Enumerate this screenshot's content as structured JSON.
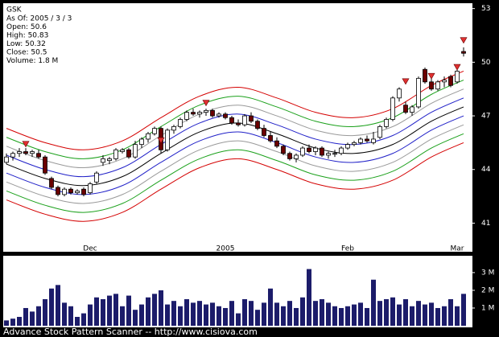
{
  "chart_data": {
    "type": "candlestick",
    "title": "GSK",
    "info": [
      "As Of: 2005 / 3 / 3",
      "Open: 50.6",
      "High: 50.83",
      "Low: 50.32",
      "Close: 50.5",
      "Volume: 1.8 M"
    ],
    "categories": [
      null,
      null,
      null,
      null,
      null,
      null,
      null,
      null,
      null,
      null,
      null,
      null,
      null,
      "Dec",
      null,
      null,
      null,
      null,
      null,
      null,
      null,
      null,
      null,
      null,
      null,
      null,
      null,
      null,
      null,
      null,
      null,
      null,
      null,
      null,
      "2005",
      null,
      null,
      null,
      null,
      null,
      null,
      null,
      null,
      null,
      null,
      null,
      null,
      null,
      null,
      null,
      null,
      null,
      null,
      "Feb",
      null,
      null,
      null,
      null,
      null,
      null,
      null,
      null,
      null,
      null,
      null,
      null,
      null,
      null,
      null,
      null,
      "Mar",
      null
    ],
    "open": [
      44.4,
      44.7,
      44.9,
      45.0,
      44.9,
      44.9,
      44.7,
      43.5,
      43.0,
      42.6,
      42.9,
      42.7,
      42.9,
      42.7,
      43.3,
      44.4,
      44.5,
      44.6,
      45.0,
      45.1,
      44.7,
      45.4,
      45.7,
      46.0,
      46.3,
      45.1,
      46.2,
      46.4,
      46.8,
      47.2,
      47.1,
      47.2,
      47.3,
      47.0,
      47.1,
      46.9,
      46.6,
      46.5,
      47.0,
      46.7,
      46.3,
      45.9,
      45.6,
      45.3,
      44.9,
      44.6,
      44.8,
      45.2,
      45.0,
      45.2,
      44.8,
      44.9,
      44.9,
      45.2,
      45.4,
      45.5,
      45.7,
      45.5,
      45.8,
      46.4,
      46.8,
      48.0,
      47.6,
      47.2,
      47.5,
      49.6,
      48.9,
      48.5,
      48.9,
      49.2,
      48.9,
      50.6
    ],
    "high": [
      44.9,
      45.0,
      45.2,
      45.2,
      45.1,
      45.1,
      44.8,
      43.6,
      43.1,
      43.0,
      43.0,
      42.9,
      43.0,
      43.3,
      43.9,
      44.8,
      44.7,
      45.2,
      45.2,
      45.2,
      45.6,
      45.8,
      46.1,
      46.4,
      46.4,
      46.3,
      46.5,
      46.9,
      47.3,
      47.4,
      47.3,
      47.4,
      47.4,
      47.2,
      47.2,
      47.0,
      46.8,
      47.1,
      47.2,
      46.8,
      46.5,
      46.1,
      45.8,
      45.4,
      45.0,
      44.9,
      45.3,
      45.4,
      45.3,
      45.3,
      45.0,
      45.1,
      45.3,
      45.5,
      45.6,
      45.8,
      45.9,
      46.1,
      46.5,
      46.9,
      48.1,
      48.6,
      47.8,
      47.6,
      49.2,
      49.7,
      49.2,
      49.0,
      49.2,
      49.3,
      49.7,
      50.83
    ],
    "low": [
      44.3,
      44.5,
      44.7,
      44.8,
      44.7,
      44.6,
      43.7,
      42.9,
      42.5,
      42.5,
      42.6,
      42.6,
      42.5,
      42.6,
      43.2,
      44.2,
      44.3,
      44.5,
      44.9,
      44.6,
      44.6,
      45.2,
      45.5,
      45.9,
      44.9,
      45.0,
      46.0,
      46.3,
      46.7,
      47.0,
      46.9,
      47.0,
      46.9,
      46.9,
      46.8,
      46.5,
      46.4,
      46.4,
      46.6,
      46.2,
      45.8,
      45.5,
      45.2,
      44.8,
      44.5,
      44.4,
      44.7,
      44.9,
      44.8,
      44.7,
      44.6,
      44.7,
      44.8,
      45.1,
      45.3,
      45.4,
      45.5,
      45.4,
      45.7,
      46.3,
      46.7,
      47.8,
      47.1,
      47.0,
      47.4,
      48.8,
      48.4,
      48.4,
      48.6,
      48.6,
      48.8,
      50.32
    ],
    "close": [
      44.7,
      44.9,
      45.0,
      44.9,
      45.0,
      44.7,
      43.8,
      43.0,
      42.6,
      42.9,
      42.7,
      42.8,
      42.6,
      43.2,
      43.8,
      44.6,
      44.6,
      45.1,
      45.1,
      44.7,
      45.4,
      45.7,
      46.0,
      46.3,
      45.1,
      46.2,
      46.4,
      46.8,
      47.2,
      47.1,
      47.2,
      47.3,
      47.0,
      47.1,
      46.9,
      46.6,
      46.5,
      47.0,
      46.7,
      46.3,
      45.9,
      45.6,
      45.3,
      44.9,
      44.6,
      44.8,
      45.2,
      45.0,
      45.2,
      44.8,
      44.9,
      44.9,
      45.2,
      45.4,
      45.5,
      45.7,
      45.6,
      45.7,
      46.4,
      46.8,
      48.0,
      48.5,
      47.2,
      47.5,
      49.1,
      48.9,
      48.5,
      48.9,
      49.0,
      48.7,
      49.5,
      50.5
    ],
    "ylim": [
      39.4,
      53.3
    ],
    "yticks": [
      41,
      44,
      47,
      50,
      53
    ],
    "up_color": "#ffffff",
    "down_color": "#6b0000",
    "bands": {
      "x": [
        0,
        6,
        12,
        18,
        24,
        30,
        36,
        42,
        48,
        54,
        60,
        66,
        71
      ],
      "series": [
        {
          "color": "#d40000",
          "values": [
            46.3,
            45.5,
            45.1,
            45.6,
            46.9,
            48.1,
            48.6,
            48.0,
            47.2,
            46.9,
            47.4,
            48.7,
            49.5
          ]
        },
        {
          "color": "#1aa01a",
          "values": [
            45.8,
            45.0,
            44.6,
            45.1,
            46.4,
            47.6,
            48.1,
            47.5,
            46.7,
            46.4,
            46.9,
            48.2,
            49.0
          ]
        },
        {
          "color": "#999999",
          "values": [
            45.3,
            44.5,
            44.1,
            44.6,
            45.9,
            47.1,
            47.6,
            47.0,
            46.2,
            45.9,
            46.4,
            47.7,
            48.5
          ]
        },
        {
          "color": "#2020c8",
          "values": [
            44.8,
            44.0,
            43.6,
            44.1,
            45.4,
            46.6,
            47.1,
            46.5,
            45.7,
            45.4,
            45.9,
            47.2,
            48.0
          ]
        },
        {
          "color": "#000000",
          "values": [
            44.3,
            43.5,
            43.1,
            43.6,
            44.9,
            46.1,
            46.6,
            46.0,
            45.2,
            44.9,
            45.4,
            46.7,
            47.5
          ]
        },
        {
          "color": "#2020c8",
          "values": [
            43.8,
            43.0,
            42.6,
            43.1,
            44.4,
            45.6,
            46.1,
            45.5,
            44.7,
            44.4,
            44.9,
            46.2,
            47.0
          ]
        },
        {
          "color": "#999999",
          "values": [
            43.3,
            42.5,
            42.1,
            42.6,
            43.9,
            45.1,
            45.6,
            45.0,
            44.2,
            43.9,
            44.4,
            45.7,
            46.5
          ]
        },
        {
          "color": "#1aa01a",
          "values": [
            42.8,
            42.0,
            41.6,
            42.1,
            43.4,
            44.6,
            45.1,
            44.5,
            43.7,
            43.4,
            43.9,
            45.2,
            46.0
          ]
        },
        {
          "color": "#d40000",
          "values": [
            42.3,
            41.5,
            41.1,
            41.6,
            42.9,
            44.1,
            44.6,
            44.0,
            43.2,
            42.9,
            43.4,
            44.7,
            45.5
          ]
        }
      ]
    },
    "signals": {
      "color": "#e03030",
      "x": [
        3,
        24,
        31,
        62,
        66,
        70,
        71
      ],
      "values": [
        45.4,
        45.6,
        47.7,
        48.9,
        49.2,
        49.7,
        51.2
      ]
    },
    "volume": {
      "color": "#1c1c6a",
      "values": [
        0.3,
        0.4,
        0.5,
        1.0,
        0.8,
        1.1,
        1.5,
        2.1,
        2.3,
        1.3,
        1.1,
        0.5,
        0.7,
        1.2,
        1.6,
        1.5,
        1.7,
        1.8,
        1.1,
        1.7,
        0.9,
        1.2,
        1.6,
        1.8,
        2.0,
        1.2,
        1.4,
        1.1,
        1.5,
        1.3,
        1.4,
        1.2,
        1.3,
        1.1,
        1.0,
        1.4,
        0.7,
        1.5,
        1.4,
        0.9,
        1.3,
        2.1,
        1.3,
        1.1,
        1.4,
        1.0,
        1.6,
        3.2,
        1.4,
        1.5,
        1.3,
        1.1,
        1.0,
        1.1,
        1.2,
        1.3,
        1.0,
        2.6,
        1.4,
        1.5,
        1.6,
        1.2,
        1.5,
        1.1,
        1.4,
        1.2,
        1.3,
        1.0,
        1.1,
        1.5,
        1.1,
        1.8
      ],
      "ylim": [
        0,
        3.95
      ],
      "yticks": [
        {
          "value": 1,
          "label": "1 M"
        },
        {
          "value": 2,
          "label": "2 M"
        },
        {
          "value": 3,
          "label": "3 M"
        }
      ]
    }
  },
  "footer": "Advance Stock Pattern Scanner -- http://www.cisiova.com"
}
